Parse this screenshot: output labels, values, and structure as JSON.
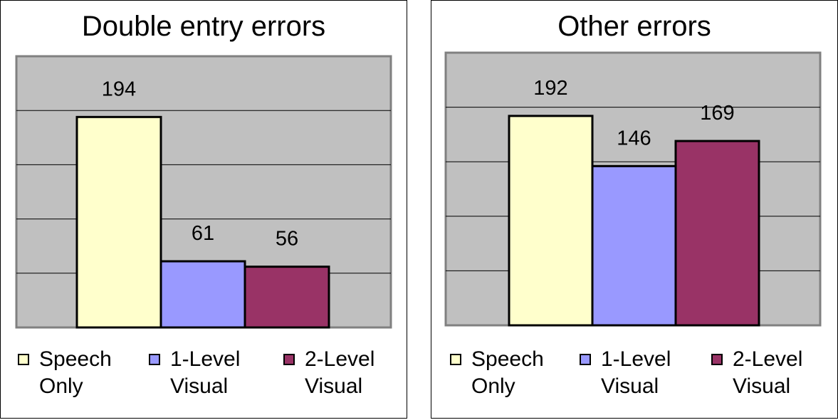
{
  "chart_data": [
    {
      "type": "bar",
      "title": "Double entry errors",
      "categories": [
        "Speech Only",
        "1-Level Visual",
        "2-Level Visual"
      ],
      "values": [
        194,
        61,
        56
      ],
      "ylim": [
        0,
        250
      ],
      "grid": true,
      "legend_position": "bottom",
      "colors": [
        "#FFFFCC",
        "#9999FF",
        "#993366"
      ],
      "legend": [
        {
          "line1": "Speech",
          "line2": "Only"
        },
        {
          "line1": "1-Level",
          "line2": "Visual"
        },
        {
          "line1": "2-Level",
          "line2": "Visual"
        }
      ]
    },
    {
      "type": "bar",
      "title": "Other errors",
      "categories": [
        "Speech Only",
        "1-Level Visual",
        "2-Level Visual"
      ],
      "values": [
        192,
        146,
        169
      ],
      "ylim": [
        0,
        250
      ],
      "grid": true,
      "legend_position": "bottom",
      "colors": [
        "#FFFFCC",
        "#9999FF",
        "#993366"
      ],
      "legend": [
        {
          "line1": "Speech",
          "line2": "Only"
        },
        {
          "line1": "1-Level",
          "line2": "Visual"
        },
        {
          "line1": "2-Level",
          "line2": "Visual"
        }
      ]
    }
  ],
  "style": {
    "plot_background": "#C0C0C0",
    "plot_border": "#808080",
    "gridline": "#000000"
  }
}
